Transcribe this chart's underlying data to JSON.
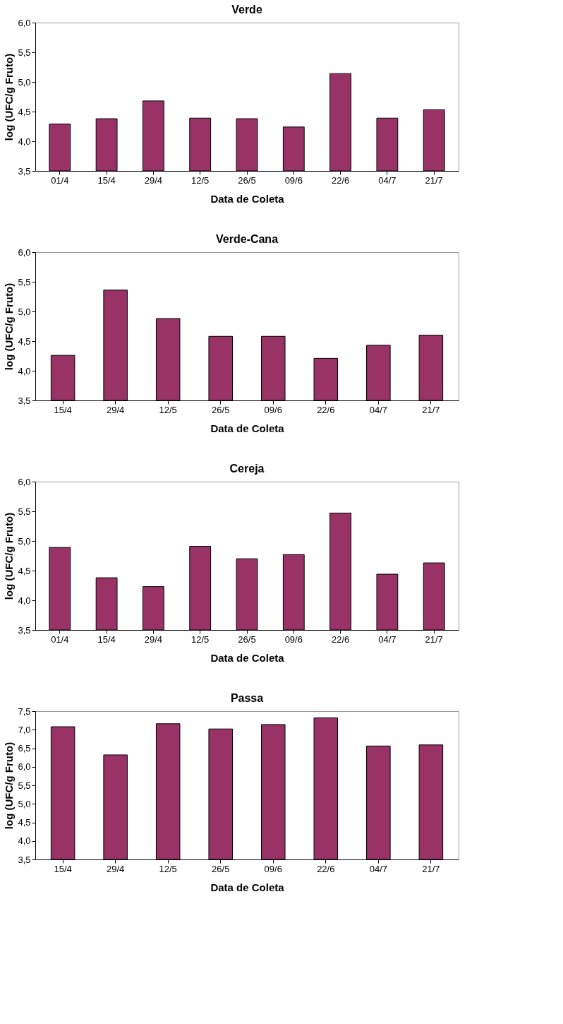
{
  "chart_data": [
    {
      "type": "bar",
      "title": "Verde",
      "xlabel": "Data de Coleta",
      "ylabel": "log (UFC/g Fruto)",
      "categories": [
        "01/4",
        "15/4",
        "29/4",
        "12/5",
        "26/5",
        "09/6",
        "22/6",
        "04/7",
        "21/7"
      ],
      "values": [
        4.29,
        4.38,
        4.68,
        4.39,
        4.38,
        4.24,
        5.14,
        4.39,
        4.53
      ],
      "color": "#993366",
      "ylim": [
        3.5,
        6.0
      ],
      "yticks": [
        {
          "value": 3.5,
          "label": "3,5"
        },
        {
          "value": 4.0,
          "label": "4,0"
        },
        {
          "value": 4.5,
          "label": "4,5"
        },
        {
          "value": 5.0,
          "label": "5,0"
        },
        {
          "value": 5.5,
          "label": "5,5"
        },
        {
          "value": 6.0,
          "label": "6,0"
        }
      ],
      "grid": false
    },
    {
      "type": "bar",
      "title": "Verde-Cana",
      "xlabel": "Data de Coleta",
      "ylabel": "log (UFC/g Fruto)",
      "categories": [
        "15/4",
        "29/4",
        "12/5",
        "26/5",
        "09/6",
        "22/6",
        "04/7",
        "21/7"
      ],
      "values": [
        4.26,
        5.36,
        4.88,
        4.58,
        4.58,
        4.21,
        4.43,
        4.6
      ],
      "color": "#993366",
      "ylim": [
        3.5,
        6.0
      ],
      "yticks": [
        {
          "value": 3.5,
          "label": "3,5"
        },
        {
          "value": 4.0,
          "label": "4,0"
        },
        {
          "value": 4.5,
          "label": "4,5"
        },
        {
          "value": 5.0,
          "label": "5,0"
        },
        {
          "value": 5.5,
          "label": "5,5"
        },
        {
          "value": 6.0,
          "label": "6,0"
        }
      ],
      "grid": false
    },
    {
      "type": "bar",
      "title": "Cereja",
      "xlabel": "Data de Coleta",
      "ylabel": "log (UFC/g Fruto)",
      "categories": [
        "01/4",
        "15/4",
        "29/4",
        "12/5",
        "26/5",
        "09/6",
        "22/6",
        "04/7",
        "21/7"
      ],
      "values": [
        4.89,
        4.38,
        4.23,
        4.91,
        4.7,
        4.77,
        5.47,
        4.44,
        4.63
      ],
      "color": "#993366",
      "ylim": [
        3.5,
        6.0
      ],
      "yticks": [
        {
          "value": 3.5,
          "label": "3,5"
        },
        {
          "value": 4.0,
          "label": "4,0"
        },
        {
          "value": 4.5,
          "label": "4,5"
        },
        {
          "value": 5.0,
          "label": "5,0"
        },
        {
          "value": 5.5,
          "label": "5,5"
        },
        {
          "value": 6.0,
          "label": "6,0"
        }
      ],
      "grid": false
    },
    {
      "type": "bar",
      "title": "Passa",
      "xlabel": "Data de Coleta",
      "ylabel": "log (UFC/g Fruto)",
      "categories": [
        "15/4",
        "29/4",
        "12/5",
        "26/5",
        "09/6",
        "22/6",
        "04/7",
        "21/7"
      ],
      "values": [
        7.08,
        6.32,
        7.16,
        7.02,
        7.14,
        7.32,
        6.56,
        6.59
      ],
      "color": "#993366",
      "ylim": [
        3.5,
        7.5
      ],
      "yticks": [
        {
          "value": 3.5,
          "label": "3,5"
        },
        {
          "value": 4.0,
          "label": "4,0"
        },
        {
          "value": 4.5,
          "label": "4,5"
        },
        {
          "value": 5.0,
          "label": "5,0"
        },
        {
          "value": 5.5,
          "label": "5,5"
        },
        {
          "value": 6.0,
          "label": "6,0"
        },
        {
          "value": 6.5,
          "label": "6,5"
        },
        {
          "value": 7.0,
          "label": "7,0"
        },
        {
          "value": 7.5,
          "label": "7,5"
        }
      ],
      "grid": false
    }
  ]
}
